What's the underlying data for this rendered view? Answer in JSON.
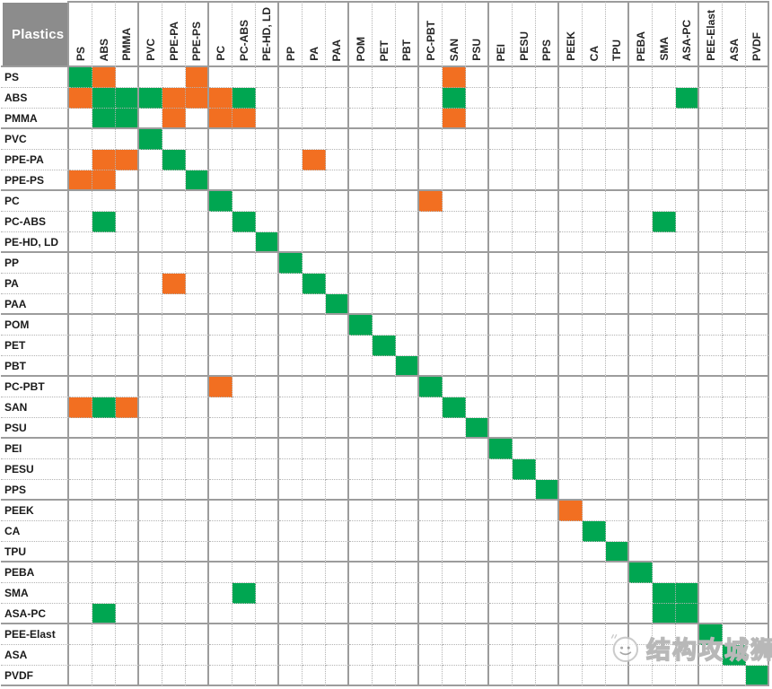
{
  "header": {
    "title": "Plastics"
  },
  "watermark": {
    "text": "结构攻城狮",
    "icon": "wechat-official-account-logo"
  },
  "colors": {
    "green": "#00a651",
    "orange": "#f26f21",
    "grid_thick": "#9c9c9c",
    "grid_dotted": "#b3b3b3",
    "corner_bg": "#8c8c8c",
    "corner_text": "#ffffff",
    "label_text": "#1a1a1a"
  },
  "chart_data": {
    "type": "heatmap",
    "title": "Plastics",
    "x_labels": [
      "PS",
      "ABS",
      "PMMA",
      "PVC",
      "PPE-PA",
      "PPE-PS",
      "PC",
      "PC-ABS",
      "PE-HD, LD",
      "PP",
      "PA",
      "PAA",
      "POM",
      "PET",
      "PBT",
      "PC-PBT",
      "SAN",
      "PSU",
      "PEI",
      "PESU",
      "PPS",
      "PEEK",
      "CA",
      "TPU",
      "PEBA",
      "SMA",
      "ASA-PC",
      "PEE-Elast",
      "ASA",
      "PVDF"
    ],
    "y_labels": [
      "PS",
      "ABS",
      "PMMA",
      "PVC",
      "PPE-PA",
      "PPE-PS",
      "PC",
      "PC-ABS",
      "PE-HD, LD",
      "PP",
      "PA",
      "PAA",
      "POM",
      "PET",
      "PBT",
      "PC-PBT",
      "SAN",
      "PSU",
      "PEI",
      "PESU",
      "PPS",
      "PEEK",
      "CA",
      "TPU",
      "PEBA",
      "SMA",
      "ASA-PC",
      "PEE-Elast",
      "ASA",
      "PVDF"
    ],
    "group_size": 3,
    "cell_legend": {
      "G": "green",
      "O": "orange",
      ".": "blank"
    },
    "matrix": [
      "GO...O..........O.............",
      "OGGGOOOG........G.........G...",
      ".GG.O.OO........O.............",
      "...G..........................",
      ".OO.G.....O...................",
      "OO...G........................",
      "......G........O..............",
      ".G.....G.................G....",
      "........G.....................",
      ".........G....................",
      "....O.....G...................",
      "...........G..................",
      "............G.................",
      ".............G................",
      "..............G...............",
      "......O........G..............",
      "OGO.............G.............",
      ".................G............",
      "..................G...........",
      "...................G..........",
      "....................G.........",
      ".....................O........",
      "......................G.......",
      ".......................G......",
      "........................G.....",
      ".......G.................GG...",
      ".G.......................GG...",
      "...........................G..",
      "............................G.",
      ".............................G"
    ]
  }
}
